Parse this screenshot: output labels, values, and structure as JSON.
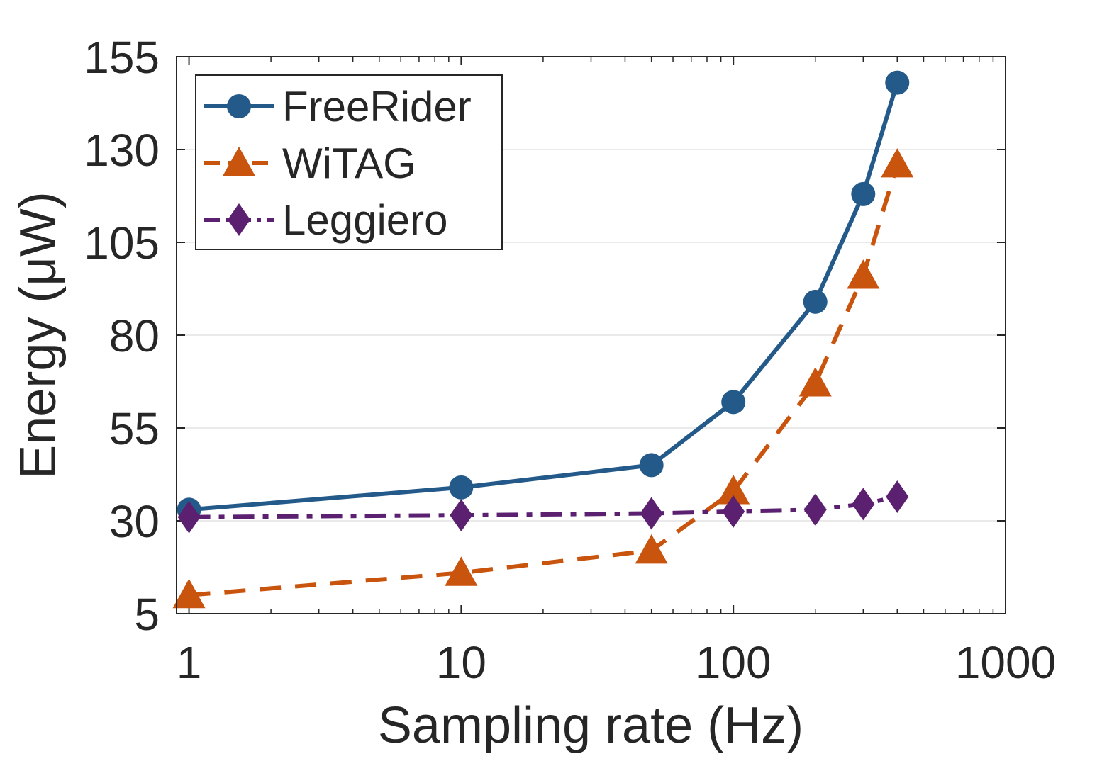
{
  "chart_data": {
    "type": "line",
    "title": "",
    "xlabel": "Sampling rate (Hz)",
    "ylabel": "Energy (μW)",
    "xscale": "log",
    "xlim": [
      0.9,
      1000
    ],
    "ylim": [
      5,
      155
    ],
    "grid": "horizontal",
    "legend_position": "top-left",
    "x_ticks": [
      {
        "value": 1,
        "label": "1"
      },
      {
        "value": 10,
        "label": "10"
      },
      {
        "value": 100,
        "label": "100"
      },
      {
        "value": 1000,
        "label": "1000"
      }
    ],
    "y_ticks": [
      {
        "value": 5,
        "label": "5"
      },
      {
        "value": 30,
        "label": "30"
      },
      {
        "value": 55,
        "label": "55"
      },
      {
        "value": 80,
        "label": "80"
      },
      {
        "value": 105,
        "label": "105"
      },
      {
        "value": 130,
        "label": "130"
      },
      {
        "value": 155,
        "label": "155"
      }
    ],
    "x": [
      1,
      10,
      50,
      100,
      200,
      300,
      400
    ],
    "series": [
      {
        "name": "FreeRider",
        "color": "#245a8a",
        "marker": "circle",
        "dash": "solid",
        "values": [
          33,
          39,
          45,
          62,
          89,
          118,
          148
        ]
      },
      {
        "name": "WiTAG",
        "color": "#c9540e",
        "marker": "triangle",
        "dash": "dashed",
        "values": [
          10,
          16,
          22,
          38,
          67,
          96,
          126
        ]
      },
      {
        "name": "Leggiero",
        "color": "#5b2170",
        "marker": "diamond",
        "dash": "dashdot",
        "values": [
          31,
          31.5,
          32,
          32.5,
          33,
          34.5,
          36.5
        ]
      }
    ]
  }
}
